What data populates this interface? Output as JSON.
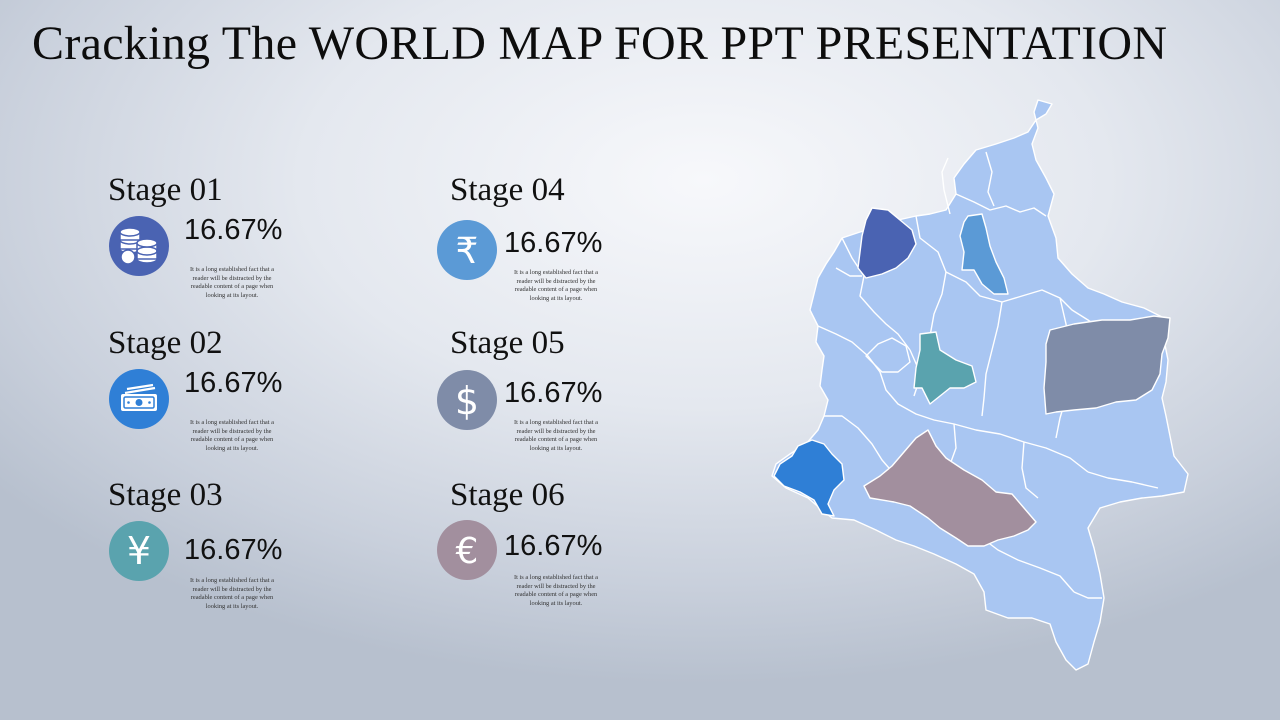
{
  "title": "Cracking The WORLD MAP FOR PPT PRESENTATION",
  "stages": [
    {
      "title": "Stage 01",
      "value": "16.67%",
      "icon": "coins-icon",
      "color": "#4a63b2",
      "desc": "It is a long established fact that a reader will be distracted by the readable content of a page when looking at its layout."
    },
    {
      "title": "Stage 02",
      "value": "16.67%",
      "icon": "banknote-icon",
      "color": "#2f7fd6",
      "desc": "It is a long established fact that a reader will be distracted by the readable content of a page when looking at its layout."
    },
    {
      "title": "Stage 03",
      "value": "16.67%",
      "icon": "yen-icon",
      "color": "#5aa3ae",
      "desc": "It is a long established fact that a reader will be distracted by the readable content of a page when looking at its layout."
    },
    {
      "title": "Stage 04",
      "value": "16.67%",
      "icon": "rupee-icon",
      "color": "#5b9ad6",
      "desc": "It is a long established fact that a reader will be distracted by the readable content of a page when looking at its layout."
    },
    {
      "title": "Stage 05",
      "value": "16.67%",
      "icon": "dollar-icon",
      "color": "#7f8ca8",
      "desc": "It is a long established fact that a reader will be distracted by the readable content of a page when looking at its layout."
    },
    {
      "title": "Stage 06",
      "value": "16.67%",
      "icon": "euro-icon",
      "color": "#a28f9e",
      "desc": "It is a long established fact that a reader will be distracted by the readable content of a page when looking at its layout."
    }
  ],
  "icon_glyphs": {
    "yen": "¥",
    "rupee": "₹",
    "dollar": "$",
    "euro": "€"
  },
  "map": {
    "base_color": "#a9c6f2",
    "border_color": "#ffffff",
    "highlights": [
      "#4a63b2",
      "#2f7fd6",
      "#5aa3ae",
      "#5b9ad6",
      "#7f8ca8",
      "#a28f9e"
    ]
  }
}
